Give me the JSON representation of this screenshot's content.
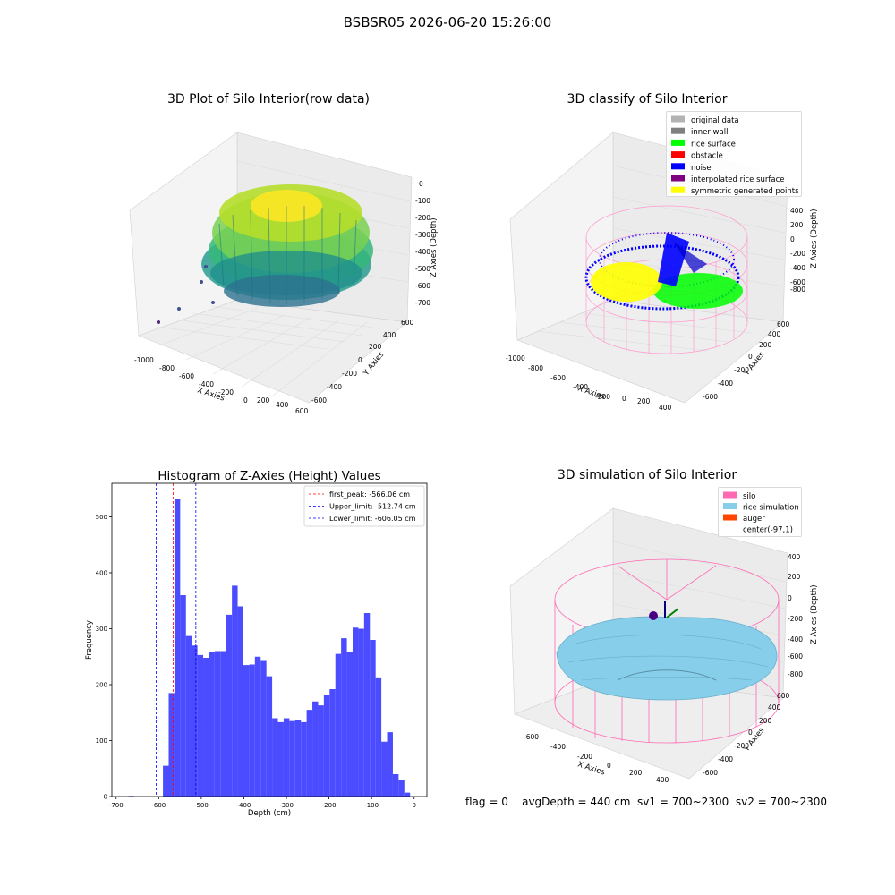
{
  "figure": {
    "suptitle": "BSBSR05 2026-06-20 15:26:00",
    "status_line": "flag = 0    avgDepth = 440 cm  sv1 = 700~2300  sv2 = 700~2300"
  },
  "panels": {
    "raw": {
      "title": "3D Plot of Silo Interior(row data)",
      "xlabel": "X Axies",
      "ylabel": "Y Axies",
      "zlabel": "Z Axies (Depth)",
      "xticks": [
        "-1000",
        "-800",
        "-600",
        "-400",
        "-200",
        "0",
        "200",
        "400",
        "600"
      ],
      "yticks": [
        "-600",
        "-400",
        "-200",
        "0",
        "200",
        "400",
        "600"
      ],
      "zticks": [
        "0",
        "-100",
        "-200",
        "-300",
        "-400",
        "-500",
        "-600",
        "-700"
      ]
    },
    "classify": {
      "title": "3D classify of Silo Interior",
      "xlabel": "X Axies",
      "ylabel": "Y Axies",
      "zlabel": "Z Axies (Depth)",
      "xticks": [
        "-1000",
        "-800",
        "-600",
        "-400",
        "-200",
        "0",
        "200",
        "400"
      ],
      "yticks": [
        "-600",
        "-400",
        "-200",
        "0",
        "200",
        "400",
        "600"
      ],
      "zticks": [
        "400",
        "200",
        "0",
        "-200",
        "-400",
        "-600",
        "-800"
      ],
      "legend": [
        {
          "label": "original data",
          "color": "#b3b3b3"
        },
        {
          "label": "inner wall",
          "color": "#808080"
        },
        {
          "label": "rice surface",
          "color": "#00ff00"
        },
        {
          "label": "obstacle",
          "color": "#ff0000"
        },
        {
          "label": "noise",
          "color": "#0000ff"
        },
        {
          "label": "interpolated rice surface",
          "color": "#800080"
        },
        {
          "label": "symmetric generated points",
          "color": "#ffff00"
        }
      ]
    },
    "simulation": {
      "title": "3D simulation of Silo Interior",
      "xlabel": "X Axies",
      "ylabel": "Y Axies",
      "zlabel": "Z Axies (Depth)",
      "xticks": [
        "-600",
        "-400",
        "-200",
        "0",
        "200",
        "400"
      ],
      "yticks": [
        "-600",
        "-400",
        "-200",
        "0",
        "200",
        "400",
        "600"
      ],
      "zticks": [
        "400",
        "200",
        "0",
        "-200",
        "-400",
        "-600",
        "-800"
      ],
      "legend": [
        {
          "label": "silo",
          "color": "#ff69b4"
        },
        {
          "label": "rice simulation",
          "color": "#87ceeb"
        },
        {
          "label": "auger",
          "color": "#ff4500"
        },
        {
          "label": "center(-97,1)",
          "color": ""
        }
      ]
    }
  },
  "chart_data": {
    "type": "bar",
    "title": "Histogram of Z-Axies (Height) Values",
    "xlabel": "Depth (cm)",
    "ylabel": "Frequency",
    "xlim": [
      -710,
      30
    ],
    "ylim": [
      0,
      560
    ],
    "xticks": [
      -700,
      -600,
      -500,
      -400,
      -300,
      -200,
      -100,
      0
    ],
    "yticks": [
      0,
      100,
      200,
      300,
      400,
      500
    ],
    "bin_width": 13.5,
    "bins": [
      {
        "x": -590,
        "value": 55
      },
      {
        "x": -576.5,
        "value": 185
      },
      {
        "x": -563,
        "value": 532
      },
      {
        "x": -549.5,
        "value": 360
      },
      {
        "x": -536,
        "value": 287
      },
      {
        "x": -522.5,
        "value": 270
      },
      {
        "x": -509,
        "value": 253
      },
      {
        "x": -495.5,
        "value": 248
      },
      {
        "x": -482,
        "value": 258
      },
      {
        "x": -468.5,
        "value": 260
      },
      {
        "x": -455,
        "value": 260
      },
      {
        "x": -441.5,
        "value": 325
      },
      {
        "x": -428,
        "value": 377
      },
      {
        "x": -414.5,
        "value": 340
      },
      {
        "x": -401,
        "value": 235
      },
      {
        "x": -387.5,
        "value": 236
      },
      {
        "x": -374,
        "value": 250
      },
      {
        "x": -360.5,
        "value": 244
      },
      {
        "x": -347,
        "value": 215
      },
      {
        "x": -333.5,
        "value": 140
      },
      {
        "x": -320,
        "value": 133
      },
      {
        "x": -306.5,
        "value": 140
      },
      {
        "x": -293,
        "value": 135
      },
      {
        "x": -279.5,
        "value": 136
      },
      {
        "x": -266,
        "value": 133
      },
      {
        "x": -252.5,
        "value": 155
      },
      {
        "x": -239,
        "value": 170
      },
      {
        "x": -225.5,
        "value": 163
      },
      {
        "x": -212,
        "value": 182
      },
      {
        "x": -198.5,
        "value": 192
      },
      {
        "x": -185,
        "value": 255
      },
      {
        "x": -171.5,
        "value": 283
      },
      {
        "x": -158,
        "value": 258
      },
      {
        "x": -144.5,
        "value": 302
      },
      {
        "x": -131,
        "value": 300
      },
      {
        "x": -117.5,
        "value": 328
      },
      {
        "x": -104,
        "value": 280
      },
      {
        "x": -90.5,
        "value": 213
      },
      {
        "x": -77,
        "value": 98
      },
      {
        "x": -63.5,
        "value": 115
      },
      {
        "x": -50,
        "value": 40
      },
      {
        "x": -36.5,
        "value": 30
      },
      {
        "x": -23,
        "value": 7
      },
      {
        "x": -671,
        "value": 1
      }
    ],
    "bar_color": "#4b4bff",
    "lines": [
      {
        "label": "first_peak: -566.06 cm",
        "x": -566.06,
        "color": "#ff0000"
      },
      {
        "label": "Upper_limit: -512.74 cm",
        "x": -512.74,
        "color": "#0000ff"
      },
      {
        "label": "Lower_limit: -606.05 cm",
        "x": -606.05,
        "color": "#0000ff"
      }
    ],
    "legend_position": "upper-right",
    "grid": false
  }
}
